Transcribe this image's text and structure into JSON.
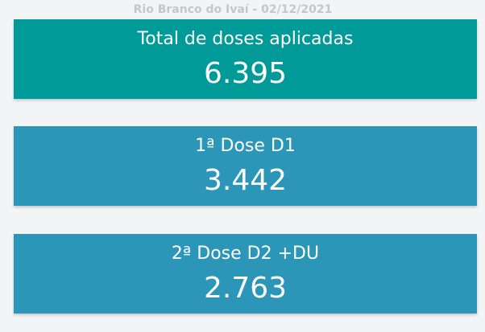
{
  "header": {
    "title": "Rio Branco do Ivaí - 02/12/2021"
  },
  "cards": [
    {
      "label": "Total de doses aplicadas",
      "value": "6.395",
      "color": "#009b99"
    },
    {
      "label": "1ª Dose D1",
      "value": "3.442",
      "color": "#2b96b7"
    },
    {
      "label": "2ª Dose D2 +DU",
      "value": "2.763",
      "color": "#2b96b7"
    }
  ]
}
